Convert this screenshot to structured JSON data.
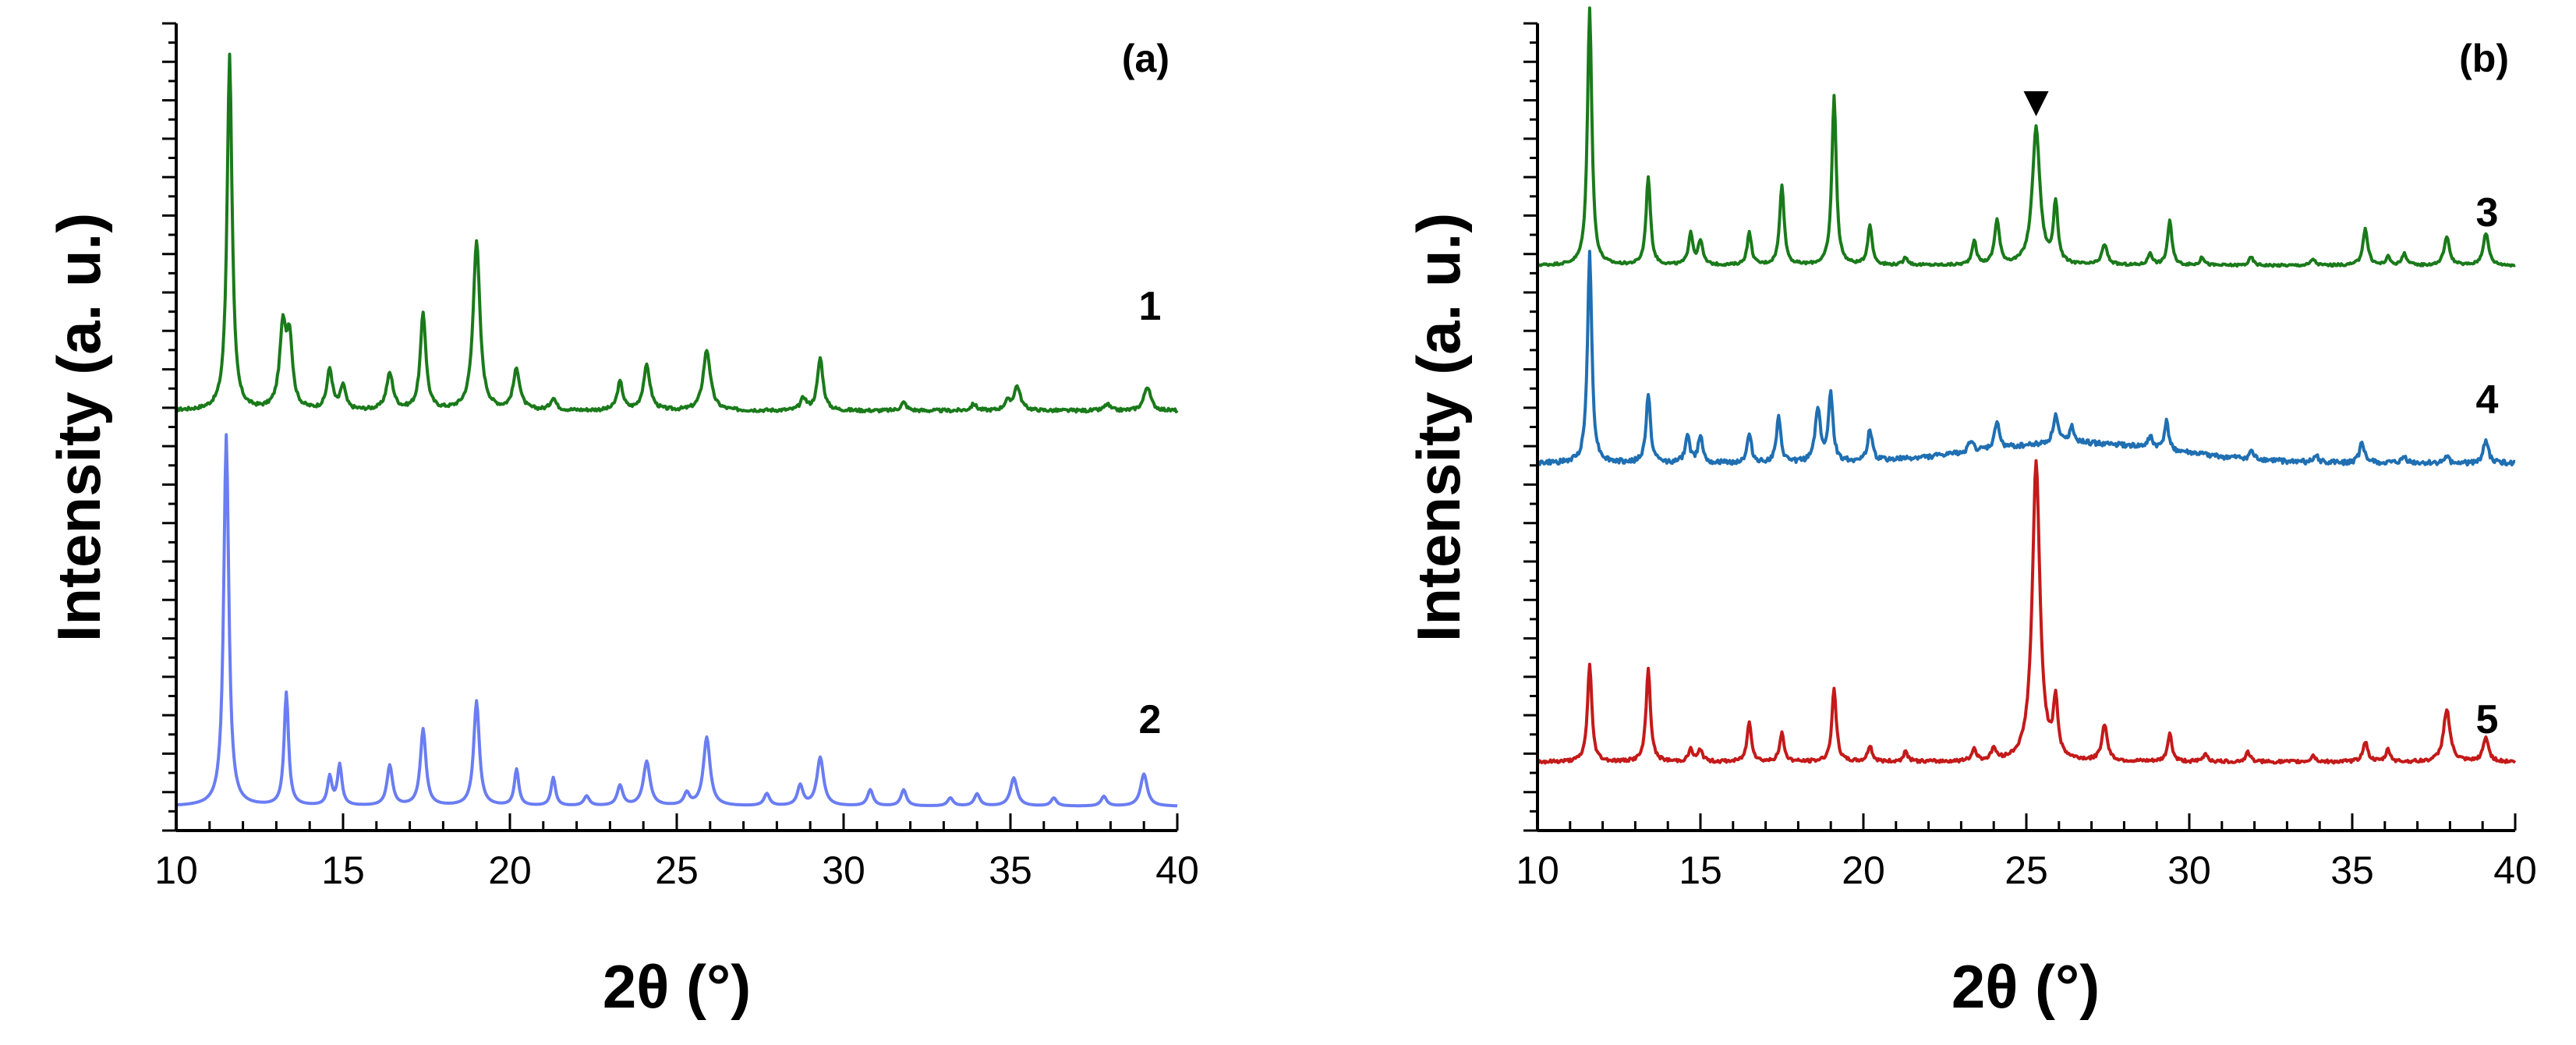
{
  "chart_data": [
    {
      "panel": "(a)",
      "type": "line",
      "xlabel_main": "2θ",
      "xlabel_unit": "(°)",
      "ylabel": "Intensity (a. u.)",
      "xlim": [
        10,
        40
      ],
      "ylim": [
        0,
        10
      ],
      "xticks": [
        10,
        15,
        20,
        25,
        30,
        35,
        40
      ],
      "series": [
        {
          "name": "1",
          "color": "#1a7a1a",
          "baseline": 5.2,
          "noise": 0.04,
          "peaks": [
            [
              11.6,
              4.4,
              0.09
            ],
            [
              13.2,
              1.0,
              0.12
            ],
            [
              13.4,
              0.8,
              0.1
            ],
            [
              14.6,
              0.5,
              0.1
            ],
            [
              15.0,
              0.3,
              0.09
            ],
            [
              16.4,
              0.45,
              0.12
            ],
            [
              17.4,
              1.2,
              0.1
            ],
            [
              19.0,
              2.1,
              0.12
            ],
            [
              20.2,
              0.5,
              0.12
            ],
            [
              21.3,
              0.15,
              0.1
            ],
            [
              23.3,
              0.35,
              0.1
            ],
            [
              24.1,
              0.55,
              0.12
            ],
            [
              25.9,
              0.75,
              0.13
            ],
            [
              28.8,
              0.15,
              0.1
            ],
            [
              29.3,
              0.65,
              0.1
            ],
            [
              31.8,
              0.1,
              0.1
            ],
            [
              33.9,
              0.08,
              0.1
            ],
            [
              34.9,
              0.1,
              0.1
            ],
            [
              35.2,
              0.3,
              0.12
            ],
            [
              37.9,
              0.08,
              0.1
            ],
            [
              39.1,
              0.3,
              0.12
            ]
          ]
        },
        {
          "name": "2",
          "color": "#6a7df2",
          "baseline": 0.3,
          "noise": 0.0,
          "peaks": [
            [
              11.5,
              4.6,
              0.09
            ],
            [
              13.3,
              1.4,
              0.08
            ],
            [
              14.6,
              0.35,
              0.08
            ],
            [
              14.9,
              0.5,
              0.08
            ],
            [
              16.4,
              0.5,
              0.1
            ],
            [
              17.4,
              0.95,
              0.1
            ],
            [
              19.0,
              1.3,
              0.1
            ],
            [
              20.2,
              0.45,
              0.08
            ],
            [
              21.3,
              0.35,
              0.08
            ],
            [
              22.3,
              0.12,
              0.1
            ],
            [
              23.3,
              0.25,
              0.1
            ],
            [
              24.1,
              0.55,
              0.12
            ],
            [
              25.3,
              0.15,
              0.1
            ],
            [
              25.9,
              0.85,
              0.12
            ],
            [
              27.7,
              0.15,
              0.1
            ],
            [
              28.7,
              0.25,
              0.1
            ],
            [
              29.3,
              0.6,
              0.12
            ],
            [
              30.8,
              0.2,
              0.1
            ],
            [
              31.8,
              0.2,
              0.1
            ],
            [
              33.2,
              0.1,
              0.1
            ],
            [
              34.0,
              0.15,
              0.1
            ],
            [
              35.1,
              0.35,
              0.12
            ],
            [
              36.3,
              0.1,
              0.1
            ],
            [
              37.8,
              0.12,
              0.1
            ],
            [
              39.0,
              0.4,
              0.12
            ]
          ]
        }
      ]
    },
    {
      "panel": "(b)",
      "type": "line",
      "xlabel_main": "2θ",
      "xlabel_unit": "(°)",
      "ylabel": "Intensity (a. u.)",
      "xlim": [
        10,
        40
      ],
      "ylim": [
        0,
        10
      ],
      "xticks": [
        10,
        15,
        20,
        25,
        30,
        35,
        40
      ],
      "marker_symbol": "▼",
      "marker_x": 25.3,
      "marker_y": 8.9,
      "series": [
        {
          "name": "3",
          "color": "#1a7a1a",
          "baseline": 7.0,
          "noise": 0.03,
          "peaks": [
            [
              11.6,
              3.2,
              0.08
            ],
            [
              13.4,
              1.1,
              0.08
            ],
            [
              14.7,
              0.4,
              0.08
            ],
            [
              15.0,
              0.3,
              0.08
            ],
            [
              16.5,
              0.4,
              0.08
            ],
            [
              17.5,
              1.0,
              0.08
            ],
            [
              19.1,
              2.1,
              0.08
            ],
            [
              20.2,
              0.5,
              0.08
            ],
            [
              21.3,
              0.1,
              0.08
            ],
            [
              23.4,
              0.3,
              0.08
            ],
            [
              24.1,
              0.55,
              0.09
            ],
            [
              25.3,
              1.7,
              0.14
            ],
            [
              25.9,
              0.75,
              0.08
            ],
            [
              27.4,
              0.25,
              0.1
            ],
            [
              28.8,
              0.15,
              0.08
            ],
            [
              29.4,
              0.55,
              0.08
            ],
            [
              30.4,
              0.1,
              0.08
            ],
            [
              31.9,
              0.1,
              0.08
            ],
            [
              33.8,
              0.08,
              0.08
            ],
            [
              35.4,
              0.45,
              0.09
            ],
            [
              36.1,
              0.1,
              0.08
            ],
            [
              36.6,
              0.15,
              0.08
            ],
            [
              37.9,
              0.35,
              0.1
            ],
            [
              39.1,
              0.4,
              0.1
            ]
          ]
        },
        {
          "name": "4",
          "color": "#1f6fb2",
          "baseline": 4.55,
          "noise": 0.06,
          "hump": [
            26.5,
            0.25,
            3.0
          ],
          "peaks": [
            [
              11.6,
              2.6,
              0.08
            ],
            [
              13.4,
              0.85,
              0.08
            ],
            [
              14.6,
              0.35,
              0.08
            ],
            [
              15.0,
              0.35,
              0.08
            ],
            [
              16.5,
              0.35,
              0.08
            ],
            [
              17.4,
              0.55,
              0.08
            ],
            [
              18.6,
              0.65,
              0.1
            ],
            [
              19.0,
              0.85,
              0.08
            ],
            [
              20.2,
              0.4,
              0.08
            ],
            [
              23.3,
              0.15,
              0.08
            ],
            [
              24.1,
              0.35,
              0.08
            ],
            [
              25.9,
              0.35,
              0.09
            ],
            [
              26.4,
              0.2,
              0.09
            ],
            [
              28.8,
              0.15,
              0.08
            ],
            [
              29.3,
              0.35,
              0.08
            ],
            [
              31.9,
              0.1,
              0.08
            ],
            [
              33.9,
              0.08,
              0.08
            ],
            [
              35.3,
              0.25,
              0.09
            ],
            [
              36.6,
              0.08,
              0.08
            ],
            [
              37.9,
              0.08,
              0.08
            ],
            [
              39.1,
              0.3,
              0.09
            ]
          ]
        },
        {
          "name": "5",
          "color": "#c41a1a",
          "baseline": 0.85,
          "noise": 0.04,
          "peaks": [
            [
              11.6,
              1.2,
              0.08
            ],
            [
              13.4,
              1.15,
              0.08
            ],
            [
              14.7,
              0.15,
              0.08
            ],
            [
              15.0,
              0.15,
              0.08
            ],
            [
              16.5,
              0.5,
              0.08
            ],
            [
              17.5,
              0.35,
              0.08
            ],
            [
              19.1,
              0.9,
              0.08
            ],
            [
              20.2,
              0.2,
              0.08
            ],
            [
              21.3,
              0.12,
              0.08
            ],
            [
              23.4,
              0.15,
              0.08
            ],
            [
              24.0,
              0.15,
              0.08
            ],
            [
              25.3,
              3.7,
              0.14
            ],
            [
              25.9,
              0.7,
              0.08
            ],
            [
              27.4,
              0.45,
              0.1
            ],
            [
              29.4,
              0.35,
              0.08
            ],
            [
              30.5,
              0.1,
              0.08
            ],
            [
              31.8,
              0.12,
              0.08
            ],
            [
              33.8,
              0.08,
              0.08
            ],
            [
              35.4,
              0.25,
              0.09
            ],
            [
              36.1,
              0.15,
              0.08
            ],
            [
              37.9,
              0.65,
              0.12
            ],
            [
              39.1,
              0.3,
              0.1
            ]
          ]
        }
      ]
    }
  ]
}
